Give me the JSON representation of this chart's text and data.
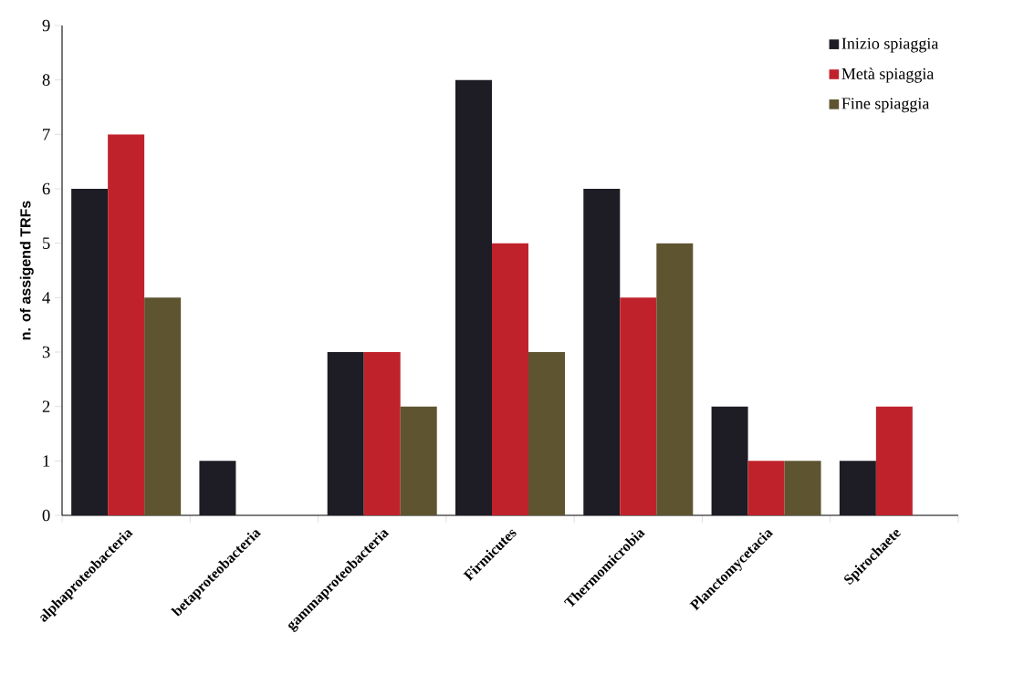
{
  "chart_data": {
    "type": "bar",
    "ylabel": "n. of assigend TRFs",
    "categories": [
      "alphaproteobacteria",
      "betaproteobacteria",
      "gammaproteobacteria",
      "Firmicutes",
      "Thermomicrobia",
      "Planctomycetacia",
      "Spirochaete"
    ],
    "series": [
      {
        "name": "Inizio spiaggia",
        "color": "#1e1c24",
        "values": [
          6,
          1,
          3,
          8,
          6,
          2,
          1
        ]
      },
      {
        "name": "Metà spiaggia",
        "color": "#c0222c",
        "values": [
          7,
          0,
          3,
          5,
          4,
          1,
          2
        ]
      },
      {
        "name": "Fine spiaggia",
        "color": "#5e5430",
        "values": [
          4,
          0,
          2,
          3,
          5,
          1,
          0
        ]
      }
    ],
    "ylim": [
      0,
      9
    ],
    "yticks": [
      0,
      1,
      2,
      3,
      4,
      5,
      6,
      7,
      8,
      9
    ],
    "legend": "top right",
    "grid": false
  }
}
